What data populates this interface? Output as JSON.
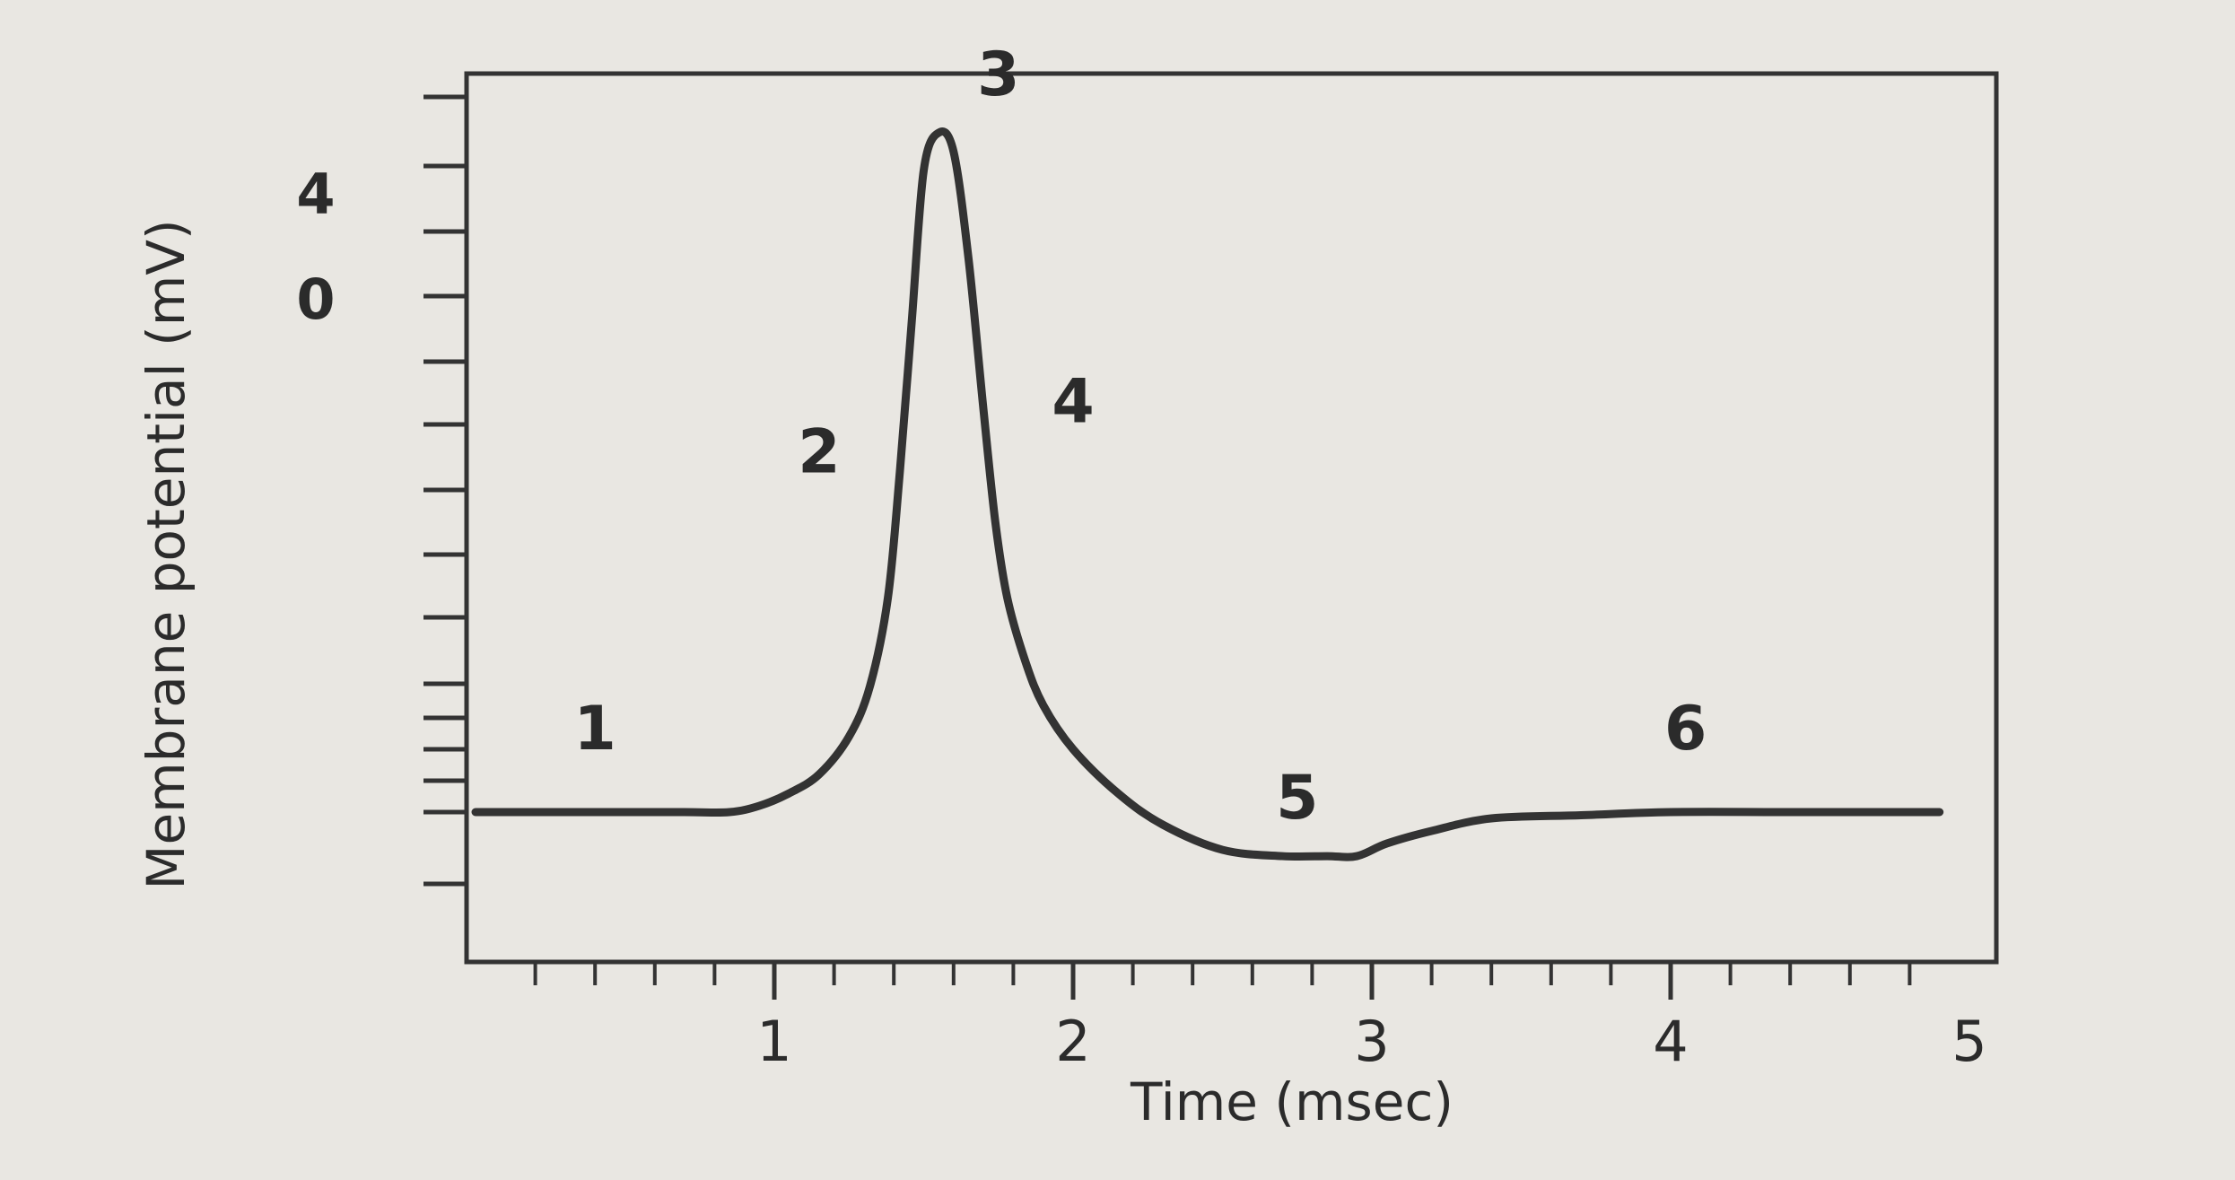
{
  "chart_data": {
    "type": "line",
    "title": "",
    "xlabel": "Time (msec)",
    "ylabel": "Membrane potential (mV)",
    "xlim": [
      0,
      5
    ],
    "x_ticks": [
      {
        "value": 1,
        "label": "1"
      },
      {
        "value": 2,
        "label": "2"
      },
      {
        "value": 3,
        "label": "3"
      },
      {
        "value": 4,
        "label": "4"
      },
      {
        "value": 5,
        "label": "5"
      }
    ],
    "y_tick_labels": [
      {
        "label": "4"
      },
      {
        "label": "0"
      }
    ],
    "grid": false,
    "legend": "none",
    "line_color": "#333333",
    "series": [
      {
        "x": [
          0,
          0.4,
          0.7,
          0.85,
          0.95,
          1.05,
          1.15,
          1.25,
          1.32,
          1.38,
          1.42,
          1.46,
          1.5,
          1.55,
          1.6,
          1.65,
          1.7,
          1.74,
          1.78,
          1.84,
          1.9,
          2.0,
          2.15,
          2.3,
          2.5,
          2.7,
          2.85,
          2.95,
          3.05,
          3.2,
          3.4,
          3.7,
          4.0,
          4.4,
          4.9
        ],
        "y": [
          -70,
          -70,
          -70,
          -70,
          -69,
          -67,
          -64,
          -58,
          -50,
          -36,
          -16,
          8,
          32,
          38,
          35,
          18,
          -6,
          -24,
          -36,
          -46,
          -53,
          -60,
          -67,
          -72,
          -76,
          -77,
          -77,
          -77,
          -75,
          -73,
          -71,
          -70.5,
          -70,
          -70,
          -70
        ]
      }
    ],
    "annotations": [
      {
        "label": "1",
        "x": 0.4,
        "y": -60
      },
      {
        "label": "2",
        "x": 1.15,
        "y": -16
      },
      {
        "label": "3",
        "x": 1.75,
        "y": 44
      },
      {
        "label": "4",
        "x": 2.0,
        "y": -8
      },
      {
        "label": "5",
        "x": 2.75,
        "y": -71
      },
      {
        "label": "6",
        "x": 4.05,
        "y": -60
      }
    ]
  }
}
